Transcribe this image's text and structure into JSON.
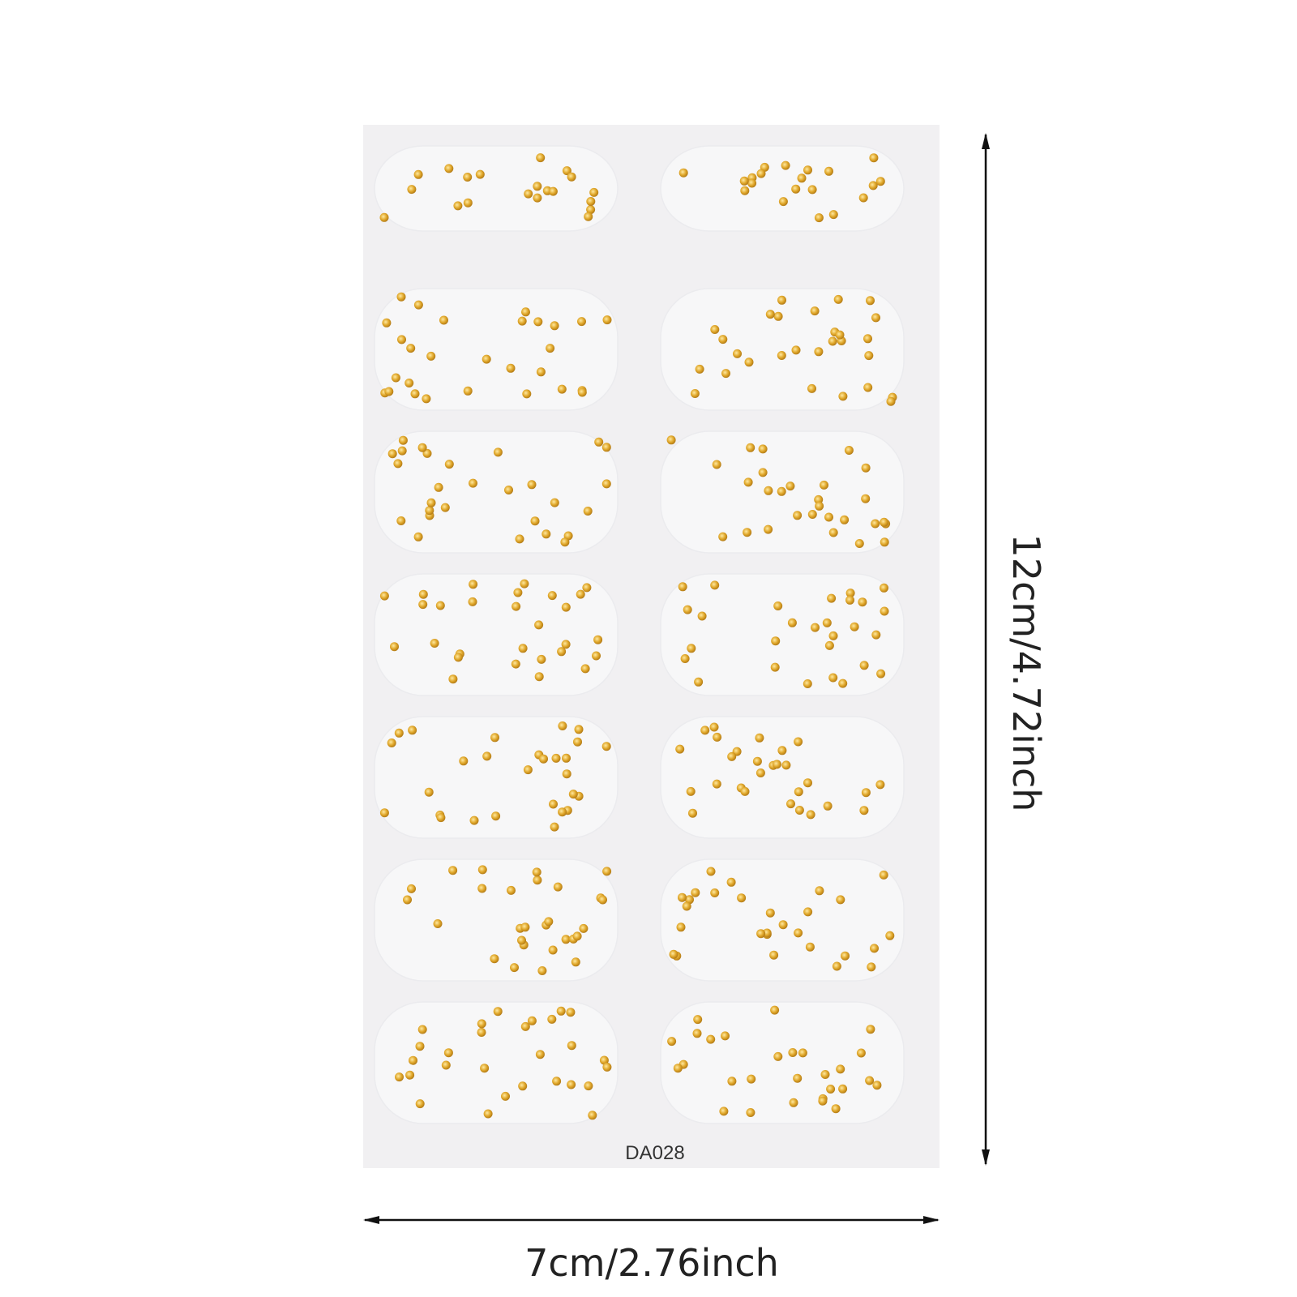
{
  "product_label": "DA028",
  "dimensions": {
    "width": "7cm/2.76inch",
    "height": "12cm/4.72inch"
  }
}
